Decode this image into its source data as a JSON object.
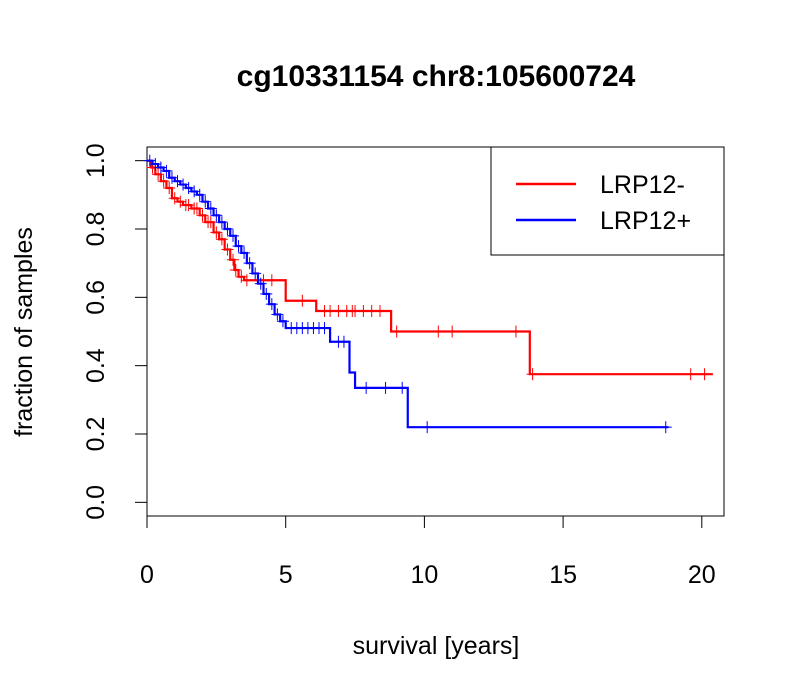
{
  "chart_data": {
    "type": "line",
    "title": "cg10331154 chr8:105600724",
    "xlabel": "survival [years]",
    "ylabel": "fraction of samples",
    "xlim": [
      0,
      20.8
    ],
    "ylim": [
      -0.04,
      1.04
    ],
    "x_ticks": [
      0,
      5,
      10,
      15,
      20
    ],
    "x_tick_labels": [
      "0",
      "5",
      "10",
      "15",
      "20"
    ],
    "y_ticks": [
      0.0,
      0.2,
      0.4,
      0.6,
      0.8,
      1.0
    ],
    "y_tick_labels": [
      "0.0",
      "0.2",
      "0.4",
      "0.6",
      "0.8",
      "1.0"
    ],
    "legend_position": "top-right",
    "series": [
      {
        "name": "LRP12-",
        "color": "#ff0000",
        "curve": [
          [
            0,
            1.0
          ],
          [
            0.15,
            0.98
          ],
          [
            0.3,
            0.96
          ],
          [
            0.5,
            0.94
          ],
          [
            0.7,
            0.92
          ],
          [
            0.9,
            0.89
          ],
          [
            1.1,
            0.88
          ],
          [
            1.3,
            0.87
          ],
          [
            1.6,
            0.86
          ],
          [
            1.9,
            0.84
          ],
          [
            2.1,
            0.82
          ],
          [
            2.4,
            0.79
          ],
          [
            2.6,
            0.77
          ],
          [
            2.8,
            0.74
          ],
          [
            3.0,
            0.71
          ],
          [
            3.15,
            0.68
          ],
          [
            3.3,
            0.66
          ],
          [
            3.5,
            0.65
          ],
          [
            5.0,
            0.59
          ],
          [
            6.1,
            0.56
          ],
          [
            8.8,
            0.5
          ],
          [
            13.8,
            0.375
          ],
          [
            20.4,
            0.375
          ]
        ],
        "censor_times": [
          0.2,
          0.4,
          0.6,
          0.8,
          1.0,
          1.2,
          1.4,
          1.5,
          1.7,
          1.8,
          2.0,
          2.2,
          2.3,
          2.5,
          2.7,
          2.9,
          3.1,
          3.2,
          3.4,
          3.6,
          4.2,
          4.5,
          5.6,
          6.4,
          6.6,
          6.9,
          7.2,
          7.4,
          7.5,
          7.8,
          8.1,
          8.4,
          9.0,
          10.5,
          11.0,
          13.3,
          13.9,
          19.6,
          20.1
        ]
      },
      {
        "name": "LRP12+",
        "color": "#0000ff",
        "curve": [
          [
            0,
            1.0
          ],
          [
            0.2,
            0.99
          ],
          [
            0.4,
            0.98
          ],
          [
            0.6,
            0.97
          ],
          [
            0.8,
            0.95
          ],
          [
            1.0,
            0.94
          ],
          [
            1.2,
            0.93
          ],
          [
            1.4,
            0.92
          ],
          [
            1.6,
            0.91
          ],
          [
            1.8,
            0.9
          ],
          [
            2.0,
            0.88
          ],
          [
            2.2,
            0.86
          ],
          [
            2.4,
            0.84
          ],
          [
            2.6,
            0.82
          ],
          [
            2.8,
            0.8
          ],
          [
            3.0,
            0.78
          ],
          [
            3.2,
            0.75
          ],
          [
            3.4,
            0.73
          ],
          [
            3.6,
            0.7
          ],
          [
            3.8,
            0.67
          ],
          [
            4.0,
            0.64
          ],
          [
            4.2,
            0.61
          ],
          [
            4.4,
            0.58
          ],
          [
            4.6,
            0.55
          ],
          [
            4.8,
            0.53
          ],
          [
            5.0,
            0.51
          ],
          [
            6.6,
            0.47
          ],
          [
            7.3,
            0.38
          ],
          [
            7.5,
            0.335
          ],
          [
            9.4,
            0.22
          ],
          [
            18.8,
            0.22
          ]
        ],
        "censor_times": [
          0.1,
          0.3,
          0.5,
          0.7,
          0.9,
          1.1,
          1.3,
          1.5,
          1.7,
          1.9,
          2.1,
          2.3,
          2.5,
          2.7,
          2.9,
          3.1,
          3.3,
          3.5,
          3.7,
          3.9,
          4.1,
          4.3,
          4.5,
          4.7,
          4.9,
          5.2,
          5.4,
          5.6,
          5.8,
          6.0,
          6.2,
          6.4,
          6.9,
          7.1,
          7.9,
          8.6,
          9.2,
          10.1,
          18.7
        ]
      }
    ]
  }
}
